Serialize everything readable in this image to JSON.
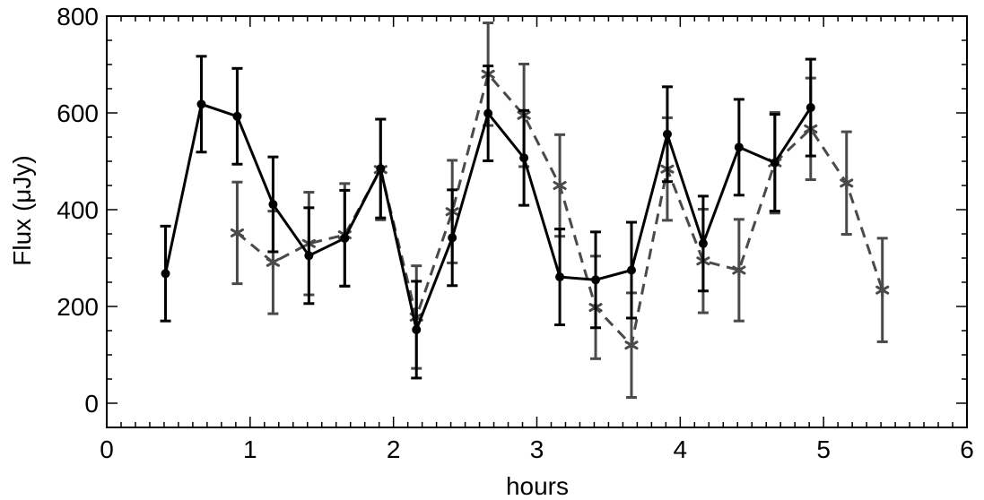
{
  "chart_data": {
    "type": "line",
    "title": "",
    "xlabel": "hours",
    "ylabel": "Flux (μJy)",
    "xlim": [
      0,
      6
    ],
    "ylim": [
      -50,
      800
    ],
    "x_ticks": [
      "0",
      "1",
      "2",
      "3",
      "4",
      "5",
      "6"
    ],
    "y_ticks": [
      "0",
      "200",
      "400",
      "600",
      "800"
    ],
    "grid": false,
    "legend": "none",
    "series": [
      {
        "color": "#000000",
        "line_style": "solid",
        "marker": "filled-circle",
        "points": [
          {
            "x": 0.41,
            "y": 268,
            "err": 98
          },
          {
            "x": 0.66,
            "y": 618,
            "err": 99
          },
          {
            "x": 0.91,
            "y": 593,
            "err": 99
          },
          {
            "x": 1.16,
            "y": 411,
            "err": 98
          },
          {
            "x": 1.41,
            "y": 305,
            "err": 99
          },
          {
            "x": 1.66,
            "y": 341,
            "err": 99
          },
          {
            "x": 1.91,
            "y": 485,
            "err": 102
          },
          {
            "x": 2.16,
            "y": 152,
            "err": 100
          },
          {
            "x": 2.41,
            "y": 342,
            "err": 99
          },
          {
            "x": 2.66,
            "y": 599,
            "err": 98
          },
          {
            "x": 2.91,
            "y": 507,
            "err": 98
          },
          {
            "x": 3.16,
            "y": 261,
            "err": 99
          },
          {
            "x": 3.41,
            "y": 255,
            "err": 99
          },
          {
            "x": 3.66,
            "y": 275,
            "err": 99
          },
          {
            "x": 3.91,
            "y": 556,
            "err": 98
          },
          {
            "x": 4.16,
            "y": 330,
            "err": 98
          },
          {
            "x": 4.41,
            "y": 529,
            "err": 99
          },
          {
            "x": 4.66,
            "y": 497,
            "err": 100
          },
          {
            "x": 4.91,
            "y": 611,
            "err": 100
          }
        ]
      },
      {
        "color": "#4a4a4a",
        "line_style": "dashed",
        "marker": "asterisk",
        "points": [
          {
            "x": 0.91,
            "y": 352,
            "err": 105
          },
          {
            "x": 1.16,
            "y": 291,
            "err": 106
          },
          {
            "x": 1.41,
            "y": 330,
            "err": 106
          },
          {
            "x": 1.66,
            "y": 348,
            "err": 106
          },
          {
            "x": 1.91,
            "y": 483,
            "err": 104
          },
          {
            "x": 2.16,
            "y": 178,
            "err": 106
          },
          {
            "x": 2.41,
            "y": 396,
            "err": 106
          },
          {
            "x": 2.66,
            "y": 680,
            "err": 106
          },
          {
            "x": 2.91,
            "y": 595,
            "err": 106
          },
          {
            "x": 3.16,
            "y": 450,
            "err": 105
          },
          {
            "x": 3.41,
            "y": 198,
            "err": 106
          },
          {
            "x": 3.66,
            "y": 120,
            "err": 108
          },
          {
            "x": 3.91,
            "y": 484,
            "err": 106
          },
          {
            "x": 4.16,
            "y": 294,
            "err": 107
          },
          {
            "x": 4.41,
            "y": 275,
            "err": 105
          },
          {
            "x": 4.66,
            "y": 497,
            "err": 104
          },
          {
            "x": 4.91,
            "y": 567,
            "err": 105
          },
          {
            "x": 5.16,
            "y": 455,
            "err": 106
          },
          {
            "x": 5.41,
            "y": 234,
            "err": 107
          }
        ]
      }
    ]
  }
}
